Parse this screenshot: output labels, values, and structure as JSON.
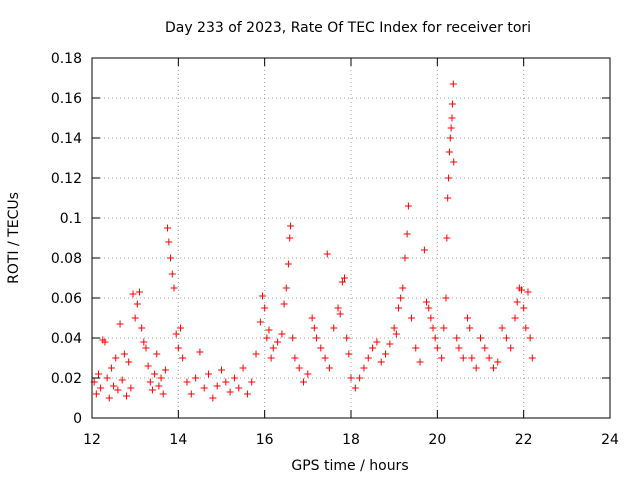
{
  "chart_data": {
    "type": "scatter",
    "title": "Day 233 of 2023, Rate Of TEC Index for receiver tori",
    "xlabel": "GPS time / hours",
    "ylabel": "ROTI / TECUs",
    "xlim": [
      12,
      24
    ],
    "ylim": [
      0,
      0.18
    ],
    "x_ticks": [
      12,
      14,
      16,
      18,
      20,
      22,
      24
    ],
    "x_tick_labels": [
      "12",
      "14",
      "16",
      "18",
      "20",
      "22",
      "24"
    ],
    "y_ticks": [
      0,
      0.02,
      0.04,
      0.06,
      0.08,
      0.1,
      0.12,
      0.14,
      0.16,
      0.18
    ],
    "y_tick_labels": [
      "0",
      "0.02",
      "0.04",
      "0.06",
      "0.08",
      "0.1",
      "0.12",
      "0.14",
      "0.16",
      "0.18"
    ],
    "grid": true,
    "marker": "+",
    "color": "#ff0000",
    "series": [
      {
        "name": "ROTI",
        "points": [
          [
            12.05,
            0.018
          ],
          [
            12.1,
            0.012
          ],
          [
            12.15,
            0.022
          ],
          [
            12.2,
            0.015
          ],
          [
            12.25,
            0.039
          ],
          [
            12.3,
            0.038
          ],
          [
            12.35,
            0.02
          ],
          [
            12.4,
            0.01
          ],
          [
            12.45,
            0.025
          ],
          [
            12.5,
            0.016
          ],
          [
            12.55,
            0.03
          ],
          [
            12.6,
            0.014
          ],
          [
            12.65,
            0.047
          ],
          [
            12.7,
            0.019
          ],
          [
            12.75,
            0.032
          ],
          [
            12.8,
            0.011
          ],
          [
            12.85,
            0.028
          ],
          [
            12.9,
            0.015
          ],
          [
            12.95,
            0.062
          ],
          [
            13.0,
            0.05
          ],
          [
            13.05,
            0.057
          ],
          [
            13.1,
            0.063
          ],
          [
            13.15,
            0.045
          ],
          [
            13.2,
            0.038
          ],
          [
            13.25,
            0.035
          ],
          [
            13.3,
            0.026
          ],
          [
            13.35,
            0.018
          ],
          [
            13.4,
            0.014
          ],
          [
            13.45,
            0.022
          ],
          [
            13.5,
            0.032
          ],
          [
            13.55,
            0.016
          ],
          [
            13.6,
            0.02
          ],
          [
            13.65,
            0.012
          ],
          [
            13.7,
            0.024
          ],
          [
            13.75,
            0.095
          ],
          [
            13.78,
            0.088
          ],
          [
            13.82,
            0.08
          ],
          [
            13.86,
            0.072
          ],
          [
            13.9,
            0.065
          ],
          [
            13.95,
            0.042
          ],
          [
            14.0,
            0.035
          ],
          [
            14.05,
            0.045
          ],
          [
            14.1,
            0.03
          ],
          [
            14.2,
            0.018
          ],
          [
            14.3,
            0.012
          ],
          [
            14.4,
            0.02
          ],
          [
            14.5,
            0.033
          ],
          [
            14.6,
            0.015
          ],
          [
            14.7,
            0.022
          ],
          [
            14.8,
            0.01
          ],
          [
            14.9,
            0.016
          ],
          [
            15.0,
            0.024
          ],
          [
            15.1,
            0.018
          ],
          [
            15.2,
            0.013
          ],
          [
            15.3,
            0.02
          ],
          [
            15.4,
            0.015
          ],
          [
            15.5,
            0.025
          ],
          [
            15.6,
            0.012
          ],
          [
            15.7,
            0.018
          ],
          [
            15.8,
            0.032
          ],
          [
            15.9,
            0.048
          ],
          [
            15.95,
            0.061
          ],
          [
            16.0,
            0.055
          ],
          [
            16.05,
            0.04
          ],
          [
            16.1,
            0.044
          ],
          [
            16.15,
            0.03
          ],
          [
            16.2,
            0.035
          ],
          [
            16.3,
            0.038
          ],
          [
            16.4,
            0.042
          ],
          [
            16.45,
            0.057
          ],
          [
            16.5,
            0.065
          ],
          [
            16.55,
            0.077
          ],
          [
            16.58,
            0.09
          ],
          [
            16.6,
            0.096
          ],
          [
            16.65,
            0.04
          ],
          [
            16.7,
            0.03
          ],
          [
            16.8,
            0.025
          ],
          [
            16.9,
            0.018
          ],
          [
            17.0,
            0.022
          ],
          [
            17.1,
            0.05
          ],
          [
            17.15,
            0.045
          ],
          [
            17.2,
            0.04
          ],
          [
            17.3,
            0.035
          ],
          [
            17.4,
            0.03
          ],
          [
            17.45,
            0.082
          ],
          [
            17.5,
            0.025
          ],
          [
            17.6,
            0.045
          ],
          [
            17.7,
            0.055
          ],
          [
            17.75,
            0.052
          ],
          [
            17.8,
            0.068
          ],
          [
            17.85,
            0.07
          ],
          [
            17.9,
            0.04
          ],
          [
            17.95,
            0.032
          ],
          [
            18.0,
            0.02
          ],
          [
            18.1,
            0.015
          ],
          [
            18.2,
            0.02
          ],
          [
            18.3,
            0.025
          ],
          [
            18.4,
            0.03
          ],
          [
            18.5,
            0.035
          ],
          [
            18.6,
            0.038
          ],
          [
            18.7,
            0.028
          ],
          [
            18.8,
            0.032
          ],
          [
            18.9,
            0.037
          ],
          [
            19.0,
            0.045
          ],
          [
            19.05,
            0.042
          ],
          [
            19.1,
            0.055
          ],
          [
            19.15,
            0.06
          ],
          [
            19.2,
            0.065
          ],
          [
            19.25,
            0.08
          ],
          [
            19.3,
            0.092
          ],
          [
            19.33,
            0.106
          ],
          [
            19.4,
            0.05
          ],
          [
            19.5,
            0.035
          ],
          [
            19.6,
            0.028
          ],
          [
            19.7,
            0.084
          ],
          [
            19.75,
            0.058
          ],
          [
            19.8,
            0.055
          ],
          [
            19.85,
            0.05
          ],
          [
            19.9,
            0.045
          ],
          [
            19.95,
            0.04
          ],
          [
            20.0,
            0.035
          ],
          [
            20.1,
            0.03
          ],
          [
            20.15,
            0.045
          ],
          [
            20.2,
            0.06
          ],
          [
            20.22,
            0.09
          ],
          [
            20.24,
            0.11
          ],
          [
            20.26,
            0.12
          ],
          [
            20.28,
            0.133
          ],
          [
            20.3,
            0.14
          ],
          [
            20.32,
            0.145
          ],
          [
            20.34,
            0.15
          ],
          [
            20.35,
            0.157
          ],
          [
            20.37,
            0.167
          ],
          [
            20.38,
            0.128
          ],
          [
            20.45,
            0.04
          ],
          [
            20.5,
            0.035
          ],
          [
            20.6,
            0.03
          ],
          [
            20.7,
            0.05
          ],
          [
            20.75,
            0.045
          ],
          [
            20.8,
            0.03
          ],
          [
            20.9,
            0.025
          ],
          [
            21.0,
            0.04
          ],
          [
            21.1,
            0.035
          ],
          [
            21.2,
            0.03
          ],
          [
            21.3,
            0.025
          ],
          [
            21.4,
            0.028
          ],
          [
            21.5,
            0.045
          ],
          [
            21.6,
            0.04
          ],
          [
            21.7,
            0.035
          ],
          [
            21.8,
            0.05
          ],
          [
            21.85,
            0.058
          ],
          [
            21.9,
            0.065
          ],
          [
            21.95,
            0.064
          ],
          [
            22.0,
            0.055
          ],
          [
            22.05,
            0.045
          ],
          [
            22.1,
            0.063
          ],
          [
            22.15,
            0.04
          ],
          [
            22.2,
            0.03
          ]
        ]
      }
    ]
  }
}
